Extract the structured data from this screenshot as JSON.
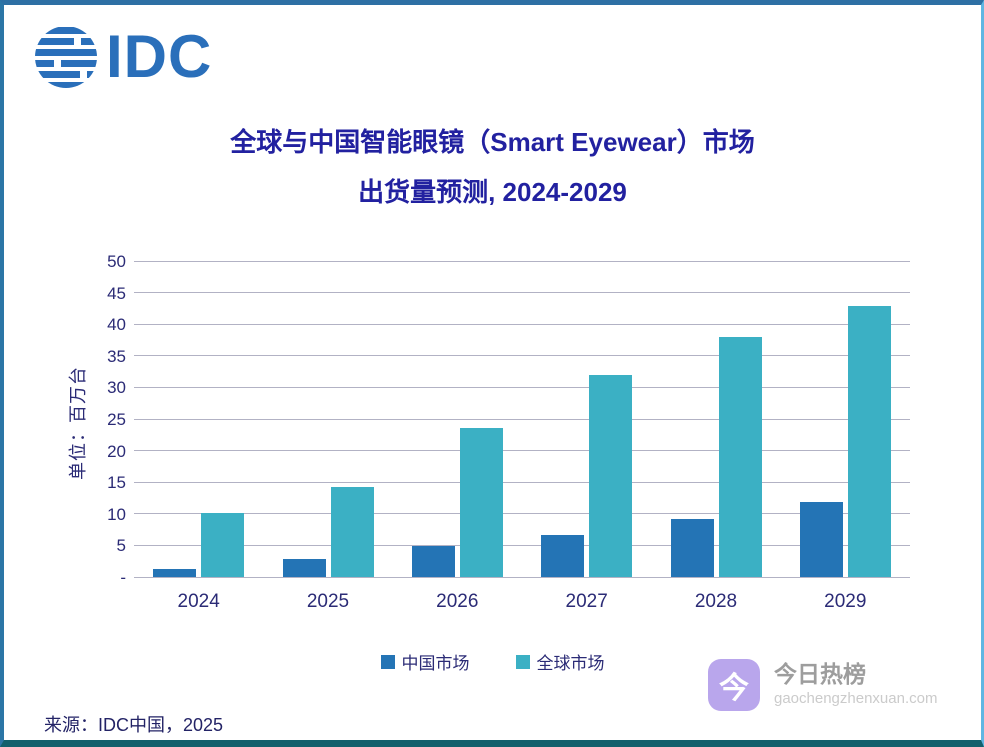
{
  "logo": {
    "text": "IDC"
  },
  "title": {
    "line1": "全球与中国智能眼镜（Smart Eyewear）市场",
    "line2": "出货量预测, 2024-2029"
  },
  "chart_data": {
    "type": "bar",
    "categories": [
      "2024",
      "2025",
      "2026",
      "2027",
      "2028",
      "2029"
    ],
    "series": [
      {
        "name": "中国市场",
        "color": "#2474b5",
        "values": [
          1.3,
          2.9,
          4.9,
          6.7,
          9.2,
          11.8
        ]
      },
      {
        "name": "全球市场",
        "color": "#3bb0c4",
        "values": [
          10.2,
          14.2,
          23.6,
          32.0,
          37.9,
          42.9
        ]
      }
    ],
    "ylabel": "单位：百万台",
    "xlabel": "",
    "ylim": [
      0,
      50
    ],
    "ytick_step": 5,
    "ytick_labels": [
      "-",
      "5",
      "10",
      "15",
      "20",
      "25",
      "30",
      "35",
      "40",
      "45",
      "50"
    ],
    "grid": true,
    "legend_position": "bottom"
  },
  "legend": {
    "items": [
      {
        "label": "中国市场"
      },
      {
        "label": "全球市场"
      }
    ]
  },
  "source": {
    "text": "来源：IDC中国，2025"
  },
  "watermark": {
    "icon_char": "今",
    "name": "今日热榜",
    "url": "gaochengzhenxuan.com",
    "icon_color": "#b9a6ec"
  },
  "colors": {
    "title": "#2221a0",
    "axis_text": "#2b2b76",
    "gridline": "#b2b2c4",
    "logo_blue": "#2a6fba",
    "frame_top": "#2e70a4",
    "frame_bottom": "#12606c"
  }
}
